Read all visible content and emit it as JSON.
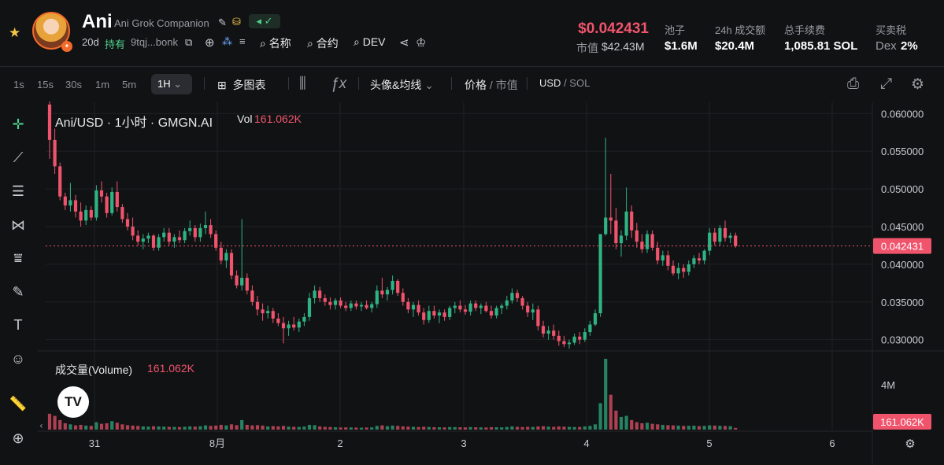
{
  "header": {
    "token_symbol": "Ani",
    "token_name": "Ani Grok Companion",
    "age": "20d",
    "holdings_label": "持有",
    "address_short": "9tqj...bonk",
    "name_search_label": "名称",
    "contract_search_label": "合约",
    "dev_search_label": "DEV",
    "price": "$0.042431",
    "market_cap_label": "市值",
    "market_cap_value": "$42.43M",
    "pool_label": "池子",
    "pool_value": "$1.6M",
    "volume24h_label": "24h 成交额",
    "volume24h_value": "$20.4M",
    "fees_label": "总手续费",
    "fees_value": "1,085.81 SOL",
    "tax_label": "买卖税",
    "tax_dex": "Dex",
    "tax_value": "2%"
  },
  "toolbar": {
    "timeframes": [
      "1s",
      "15s",
      "30s",
      "1m",
      "5m"
    ],
    "active_timeframe": "1H",
    "multi_chart": "多图表",
    "indicators": "头像&均线",
    "price_label": "价格",
    "mcap_label": "市值",
    "usd_label": "USD",
    "sol_label": "SOL"
  },
  "legend": {
    "pair": "Ani/USD · 1小时 · GMGN.AI",
    "vol_label": "Vol",
    "vol_value": "161.062K"
  },
  "volume_pane": {
    "label": "成交量(Volume)",
    "value": "161.062K",
    "axis_label": "4M",
    "last_value": "161.062K"
  },
  "colors": {
    "up": "#2fb383",
    "down": "#f0546c",
    "background": "#111214",
    "grid": "#1f2125",
    "accent_price": "#f0546c"
  },
  "chart_data": {
    "type": "candlestick",
    "price_axis_ticks": [
      "0.060000",
      "0.055000",
      "0.050000",
      "0.045000",
      "0.040000",
      "0.035000",
      "0.030000"
    ],
    "current_price": "0.042431",
    "ylim": [
      0.0285,
      0.0615
    ],
    "x_ticks": [
      "31",
      "8月",
      "2",
      "3",
      "4",
      "5",
      "6"
    ],
    "volume_ylim": [
      0,
      7000000
    ],
    "candles": [
      [
        0.0612,
        0.0616,
        0.054,
        0.0565,
        1500000
      ],
      [
        0.0565,
        0.058,
        0.052,
        0.053,
        1300000
      ],
      [
        0.053,
        0.0535,
        0.0485,
        0.049,
        900000
      ],
      [
        0.049,
        0.0495,
        0.0472,
        0.0478,
        600000
      ],
      [
        0.0478,
        0.0508,
        0.047,
        0.0485,
        500000
      ],
      [
        0.0485,
        0.0492,
        0.0462,
        0.047,
        400000
      ],
      [
        0.047,
        0.0482,
        0.045,
        0.0458,
        450000
      ],
      [
        0.0458,
        0.0478,
        0.0452,
        0.0472,
        380000
      ],
      [
        0.0472,
        0.0477,
        0.0458,
        0.0462,
        350000
      ],
      [
        0.0462,
        0.0505,
        0.0458,
        0.0498,
        700000
      ],
      [
        0.0498,
        0.051,
        0.0482,
        0.049,
        550000
      ],
      [
        0.049,
        0.0495,
        0.0462,
        0.0468,
        600000
      ],
      [
        0.0468,
        0.0502,
        0.0465,
        0.0496,
        800000
      ],
      [
        0.0496,
        0.051,
        0.047,
        0.0476,
        650000
      ],
      [
        0.0476,
        0.048,
        0.0455,
        0.046,
        500000
      ],
      [
        0.046,
        0.0468,
        0.0445,
        0.045,
        420000
      ],
      [
        0.045,
        0.0462,
        0.0432,
        0.0438,
        380000
      ],
      [
        0.0438,
        0.0445,
        0.0425,
        0.043,
        350000
      ],
      [
        0.043,
        0.044,
        0.042,
        0.0434,
        300000
      ],
      [
        0.0434,
        0.0442,
        0.0428,
        0.0438,
        280000
      ],
      [
        0.0438,
        0.044,
        0.0418,
        0.0422,
        320000
      ],
      [
        0.0422,
        0.044,
        0.0418,
        0.0436,
        300000
      ],
      [
        0.0436,
        0.0448,
        0.043,
        0.0442,
        280000
      ],
      [
        0.0442,
        0.0448,
        0.0425,
        0.043,
        260000
      ],
      [
        0.043,
        0.044,
        0.0422,
        0.0436,
        250000
      ],
      [
        0.0436,
        0.0445,
        0.0428,
        0.0432,
        240000
      ],
      [
        0.0432,
        0.0448,
        0.0428,
        0.0444,
        270000
      ],
      [
        0.0444,
        0.0458,
        0.0438,
        0.0448,
        300000
      ],
      [
        0.0448,
        0.0452,
        0.043,
        0.0436,
        280000
      ],
      [
        0.0436,
        0.0454,
        0.043,
        0.0448,
        320000
      ],
      [
        0.0448,
        0.047,
        0.044,
        0.0452,
        400000
      ],
      [
        0.0452,
        0.046,
        0.0435,
        0.044,
        350000
      ],
      [
        0.044,
        0.0445,
        0.0418,
        0.0422,
        380000
      ],
      [
        0.0422,
        0.043,
        0.04,
        0.0405,
        450000
      ],
      [
        0.0405,
        0.042,
        0.0395,
        0.0415,
        400000
      ],
      [
        0.0415,
        0.042,
        0.038,
        0.0385,
        500000
      ],
      [
        0.0385,
        0.0392,
        0.0368,
        0.0372,
        420000
      ],
      [
        0.0372,
        0.046,
        0.0365,
        0.0382,
        900000
      ],
      [
        0.0382,
        0.0388,
        0.036,
        0.0365,
        450000
      ],
      [
        0.0365,
        0.0372,
        0.0345,
        0.035,
        400000
      ],
      [
        0.035,
        0.0358,
        0.0332,
        0.034,
        420000
      ],
      [
        0.034,
        0.0348,
        0.0325,
        0.0335,
        380000
      ],
      [
        0.0335,
        0.0345,
        0.0328,
        0.0338,
        300000
      ],
      [
        0.0338,
        0.0342,
        0.0322,
        0.0328,
        330000
      ],
      [
        0.0328,
        0.0335,
        0.0318,
        0.0322,
        300000
      ],
      [
        0.0322,
        0.033,
        0.0295,
        0.0315,
        350000
      ],
      [
        0.0315,
        0.0325,
        0.0305,
        0.032,
        280000
      ],
      [
        0.032,
        0.033,
        0.0312,
        0.0316,
        260000
      ],
      [
        0.0316,
        0.0328,
        0.031,
        0.0324,
        250000
      ],
      [
        0.0324,
        0.0335,
        0.0318,
        0.033,
        280000
      ],
      [
        0.033,
        0.0362,
        0.0325,
        0.0355,
        450000
      ],
      [
        0.0355,
        0.0372,
        0.0348,
        0.0365,
        420000
      ],
      [
        0.0365,
        0.037,
        0.035,
        0.0355,
        300000
      ],
      [
        0.0355,
        0.036,
        0.0345,
        0.035,
        260000
      ],
      [
        0.035,
        0.0356,
        0.034,
        0.0346,
        240000
      ],
      [
        0.0346,
        0.0355,
        0.034,
        0.0352,
        220000
      ],
      [
        0.0352,
        0.0356,
        0.0342,
        0.0345,
        200000
      ],
      [
        0.0345,
        0.035,
        0.0338,
        0.0342,
        210000
      ],
      [
        0.0342,
        0.0352,
        0.0338,
        0.0348,
        200000
      ],
      [
        0.0348,
        0.0352,
        0.034,
        0.0344,
        190000
      ],
      [
        0.0344,
        0.035,
        0.0338,
        0.0346,
        180000
      ],
      [
        0.0346,
        0.0352,
        0.034,
        0.0342,
        200000
      ],
      [
        0.0342,
        0.035,
        0.0336,
        0.0347,
        210000
      ],
      [
        0.0347,
        0.0372,
        0.0342,
        0.0365,
        350000
      ],
      [
        0.0365,
        0.0382,
        0.0355,
        0.036,
        400000
      ],
      [
        0.036,
        0.037,
        0.0352,
        0.0366,
        320000
      ],
      [
        0.0366,
        0.0385,
        0.036,
        0.0378,
        380000
      ],
      [
        0.0378,
        0.038,
        0.0358,
        0.0362,
        350000
      ],
      [
        0.0362,
        0.0368,
        0.0345,
        0.035,
        300000
      ],
      [
        0.035,
        0.0355,
        0.0335,
        0.034,
        280000
      ],
      [
        0.034,
        0.035,
        0.033,
        0.0346,
        260000
      ],
      [
        0.0346,
        0.0352,
        0.0332,
        0.0336,
        240000
      ],
      [
        0.0336,
        0.0342,
        0.032,
        0.0326,
        270000
      ],
      [
        0.0326,
        0.0345,
        0.0322,
        0.0338,
        250000
      ],
      [
        0.0338,
        0.0345,
        0.0328,
        0.0332,
        230000
      ],
      [
        0.0332,
        0.034,
        0.0322,
        0.0336,
        220000
      ],
      [
        0.0336,
        0.034,
        0.0325,
        0.033,
        210000
      ],
      [
        0.033,
        0.0345,
        0.0326,
        0.0342,
        240000
      ],
      [
        0.0342,
        0.035,
        0.0335,
        0.0345,
        230000
      ],
      [
        0.0345,
        0.0352,
        0.0336,
        0.034,
        220000
      ],
      [
        0.034,
        0.0346,
        0.0333,
        0.0337,
        210000
      ],
      [
        0.0337,
        0.0352,
        0.0332,
        0.0348,
        240000
      ],
      [
        0.0348,
        0.0352,
        0.0338,
        0.0342,
        220000
      ],
      [
        0.0342,
        0.0348,
        0.0334,
        0.0345,
        210000
      ],
      [
        0.0345,
        0.035,
        0.0336,
        0.0338,
        200000
      ],
      [
        0.0338,
        0.0345,
        0.0328,
        0.0332,
        230000
      ],
      [
        0.0332,
        0.0345,
        0.0328,
        0.0342,
        220000
      ],
      [
        0.0342,
        0.0348,
        0.0334,
        0.0345,
        210000
      ],
      [
        0.0345,
        0.0358,
        0.034,
        0.0352,
        250000
      ],
      [
        0.0352,
        0.0368,
        0.0348,
        0.0362,
        300000
      ],
      [
        0.0362,
        0.0366,
        0.035,
        0.0355,
        260000
      ],
      [
        0.0355,
        0.0358,
        0.034,
        0.0345,
        240000
      ],
      [
        0.0345,
        0.035,
        0.033,
        0.0336,
        260000
      ],
      [
        0.0336,
        0.0348,
        0.0326,
        0.034,
        250000
      ],
      [
        0.034,
        0.0345,
        0.0312,
        0.0318,
        300000
      ],
      [
        0.0318,
        0.0325,
        0.0303,
        0.0308,
        320000
      ],
      [
        0.0308,
        0.0318,
        0.03,
        0.0312,
        280000
      ],
      [
        0.0312,
        0.032,
        0.03,
        0.0305,
        260000
      ],
      [
        0.0305,
        0.0312,
        0.0292,
        0.0298,
        300000
      ],
      [
        0.0298,
        0.0305,
        0.029,
        0.0294,
        280000
      ],
      [
        0.0294,
        0.03,
        0.0288,
        0.0296,
        260000
      ],
      [
        0.0296,
        0.0308,
        0.0293,
        0.0304,
        240000
      ],
      [
        0.0304,
        0.031,
        0.0294,
        0.03,
        250000
      ],
      [
        0.03,
        0.0315,
        0.0297,
        0.031,
        300000
      ],
      [
        0.031,
        0.0325,
        0.0305,
        0.032,
        350000
      ],
      [
        0.032,
        0.034,
        0.0318,
        0.0335,
        500000
      ],
      [
        0.0335,
        0.044,
        0.033,
        0.044,
        2500000
      ],
      [
        0.044,
        0.0568,
        0.0438,
        0.0462,
        6700000
      ],
      [
        0.0462,
        0.052,
        0.044,
        0.0458,
        3300000
      ],
      [
        0.0458,
        0.0475,
        0.042,
        0.0428,
        1800000
      ],
      [
        0.0428,
        0.0445,
        0.041,
        0.0438,
        1200000
      ],
      [
        0.0438,
        0.0502,
        0.0432,
        0.047,
        1300000
      ],
      [
        0.047,
        0.0478,
        0.0435,
        0.0445,
        900000
      ],
      [
        0.0445,
        0.0455,
        0.0422,
        0.043,
        700000
      ],
      [
        0.043,
        0.044,
        0.0415,
        0.042,
        600000
      ],
      [
        0.042,
        0.0445,
        0.0415,
        0.044,
        650000
      ],
      [
        0.044,
        0.0445,
        0.0418,
        0.0422,
        550000
      ],
      [
        0.0422,
        0.043,
        0.04,
        0.0405,
        500000
      ],
      [
        0.0405,
        0.0418,
        0.0398,
        0.0412,
        450000
      ],
      [
        0.0412,
        0.0418,
        0.0392,
        0.0398,
        420000
      ],
      [
        0.0398,
        0.0405,
        0.0385,
        0.0388,
        400000
      ],
      [
        0.0388,
        0.0402,
        0.038,
        0.0395,
        380000
      ],
      [
        0.0395,
        0.04,
        0.0382,
        0.039,
        350000
      ],
      [
        0.039,
        0.0405,
        0.0385,
        0.04,
        360000
      ],
      [
        0.04,
        0.0412,
        0.0395,
        0.0408,
        370000
      ],
      [
        0.0408,
        0.0415,
        0.04,
        0.0405,
        330000
      ],
      [
        0.0405,
        0.042,
        0.04,
        0.0418,
        350000
      ],
      [
        0.0418,
        0.0448,
        0.0412,
        0.0442,
        400000
      ],
      [
        0.0442,
        0.0448,
        0.0425,
        0.043,
        380000
      ],
      [
        0.043,
        0.0452,
        0.0425,
        0.0448,
        360000
      ],
      [
        0.0448,
        0.0458,
        0.043,
        0.0435,
        340000
      ],
      [
        0.0435,
        0.0442,
        0.0428,
        0.0438,
        320000
      ],
      [
        0.0438,
        0.0442,
        0.0422,
        0.0424,
        161062
      ]
    ]
  }
}
